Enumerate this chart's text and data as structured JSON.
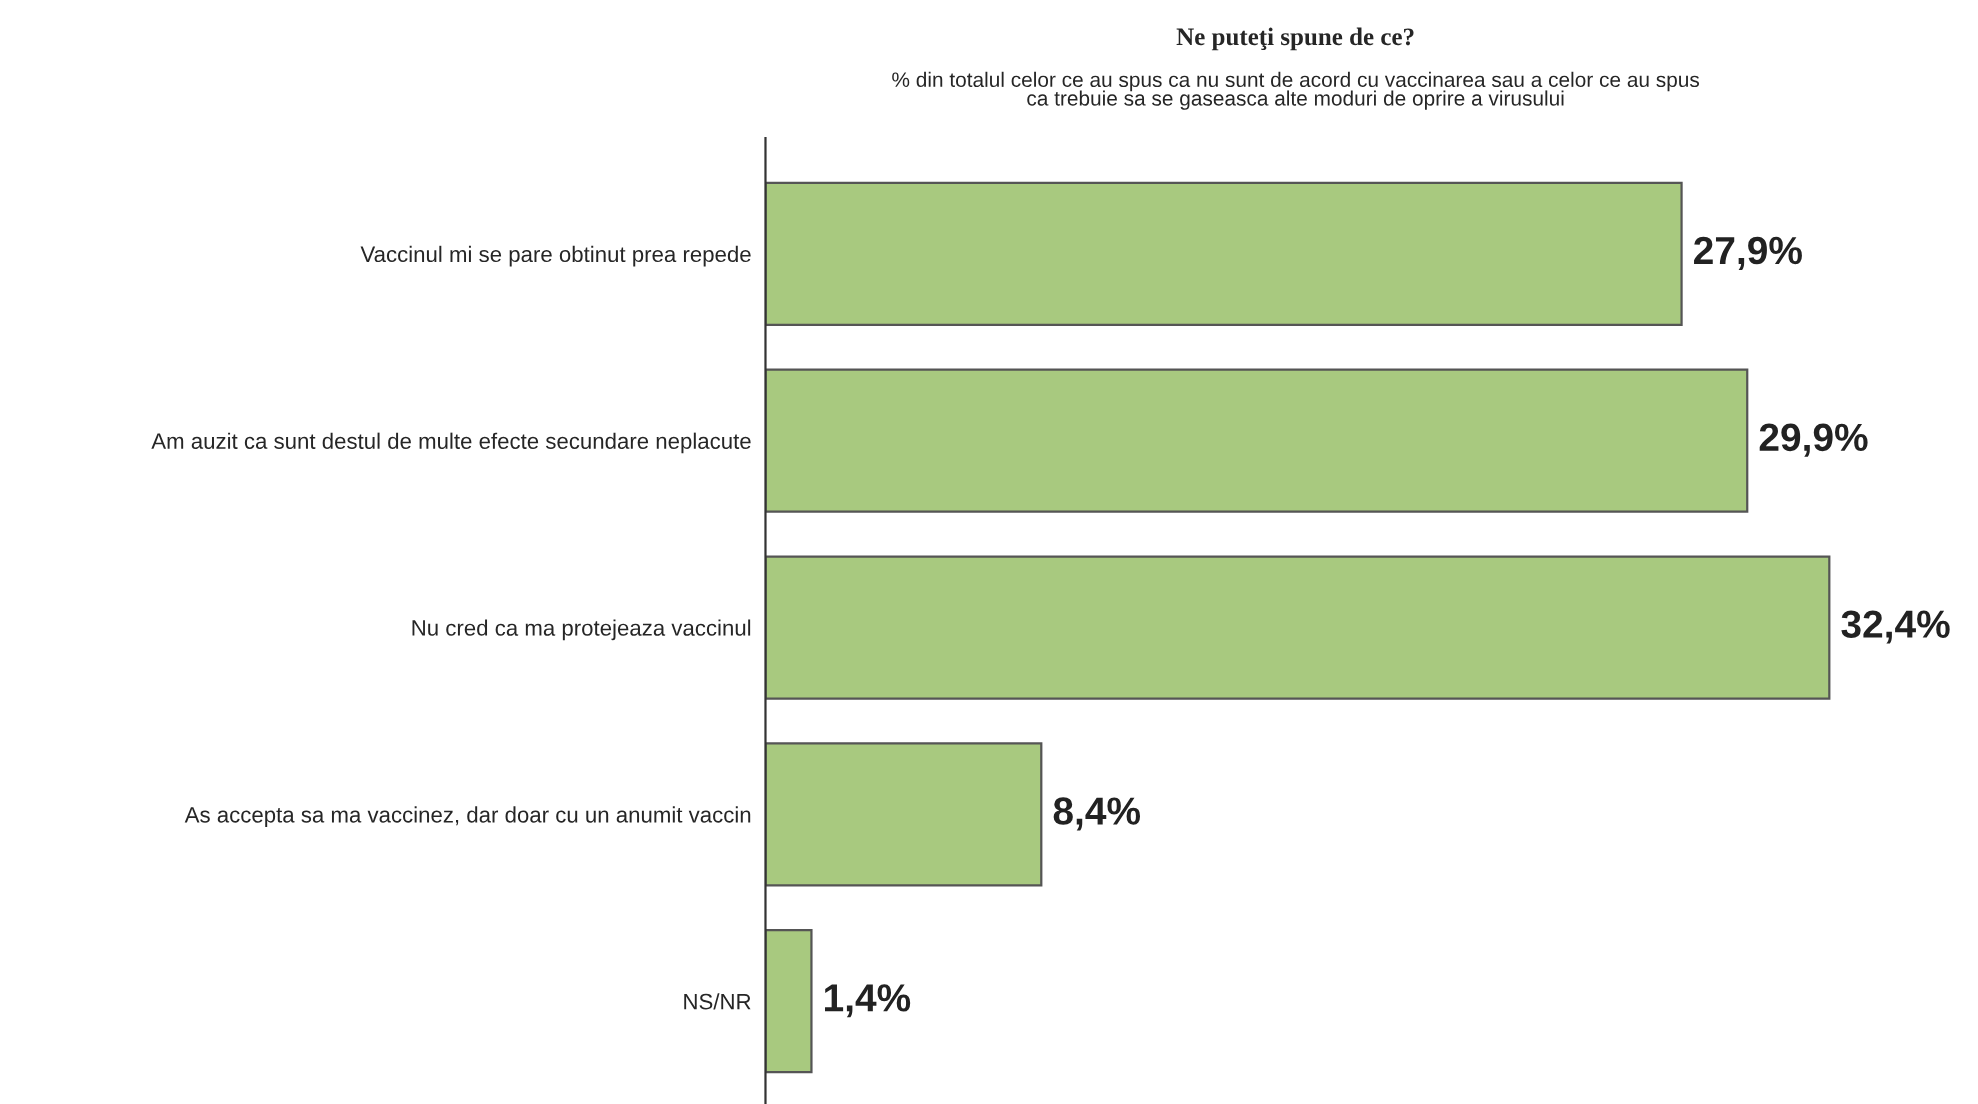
{
  "chart_data": {
    "type": "bar",
    "orientation": "horizontal",
    "title": "Ne puteţi spune de ce?",
    "subtitle": "% din totalul celor ce au spus ca nu sunt de acord cu vaccinarea sau a celor ce au spus\nca trebuie sa se gaseasca alte moduri de oprire a virusului",
    "categories": [
      "Vaccinul mi se pare obtinut prea repede",
      "Am auzit ca sunt destul de multe efecte secundare neplacute",
      "Nu cred ca ma protejeaza vaccinul",
      "As accepta sa ma vaccinez, dar doar cu un anumit vaccin",
      "NS/NR"
    ],
    "values": [
      27.9,
      29.9,
      32.4,
      8.4,
      1.4
    ],
    "value_labels": [
      "27,9%",
      "29,9%",
      "32,4%",
      "8,4%",
      "1,4%"
    ],
    "color": "#a8c97f",
    "grid": false,
    "legend": false,
    "tick_labels": "y"
  }
}
